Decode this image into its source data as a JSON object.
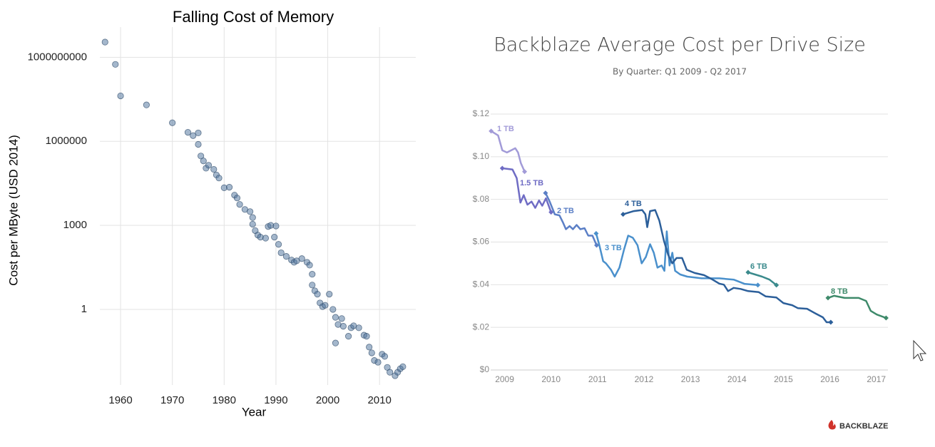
{
  "chart_data": [
    {
      "type": "scatter",
      "title": "Falling Cost of Memory",
      "x_label": "Year",
      "y_label": "Cost per MByte (USD 2014)",
      "x": [
        1957,
        1959,
        1960,
        1965,
        1970,
        1973,
        1974,
        1975,
        1975,
        1975.5,
        1976,
        1976.5,
        1977,
        1978,
        1978.5,
        1979,
        1980,
        1981,
        1982,
        1982.5,
        1983,
        1984,
        1985,
        1985.5,
        1985.5,
        1986,
        1986.5,
        1987,
        1988,
        1988.5,
        1989,
        1990,
        1989.7,
        1990.5,
        1991,
        1992,
        1993,
        1993.5,
        1994,
        1995,
        1996,
        1996.5,
        1997,
        1997,
        1997.5,
        1998,
        1998.5,
        1999,
        1999.5,
        2000.3,
        2001,
        2001.5,
        2001.5,
        2002,
        2002.7,
        2003,
        2004,
        2004.5,
        2005,
        2006,
        2007,
        2007.5,
        2008,
        2008.5,
        2009,
        2009.7,
        2010.5,
        2011,
        2011.5,
        2012,
        2013,
        2013.5,
        2014,
        2014.5
      ],
      "values": [
        3500000000,
        560000000,
        42000000,
        20000000,
        4600000,
        2100000,
        1600000,
        2000000,
        780000,
        300000,
        200000,
        110000,
        140000,
        100000,
        63000,
        49000,
        22000,
        23000,
        12000,
        9500,
        5600,
        3700,
        3100,
        1900,
        1100,
        650,
        450,
        380,
        350,
        910,
        1000,
        950,
        380,
        210,
        105,
        78,
        58,
        48,
        54,
        65,
        48,
        38,
        18,
        7.4,
        4.6,
        3.5,
        1.7,
        1.26,
        1.4,
        3.5,
        1,
        0.52,
        0.063,
        0.29,
        0.47,
        0.25,
        0.11,
        0.22,
        0.26,
        0.22,
        0.12,
        0.11,
        0.045,
        0.028,
        0.015,
        0.013,
        0.025,
        0.021,
        0.0085,
        0.0057,
        0.0043,
        0.0057,
        0.0076,
        0.009
      ],
      "color": "#4a6f9a",
      "xlim": [
        1956,
        2017
      ],
      "ylim": [
        0.002,
        12000000000
      ],
      "y_scale": "log",
      "xticks": [
        1960,
        1970,
        1980,
        1990,
        2000,
        2010
      ],
      "yticks": [
        1,
        1000,
        1000000,
        1000000000
      ],
      "grid": true
    },
    {
      "type": "line",
      "title": "Backblaze Average Cost per Drive Size",
      "subtitle": "By Quarter: Q1 2009 - Q2 2017",
      "logo": "BACKBLAZE",
      "xlim": [
        2008.7,
        2017.25
      ],
      "xticks": [
        2009,
        2010,
        2011,
        2012,
        2013,
        2014,
        2015,
        2016,
        2017
      ],
      "ylim": [
        0,
        0.12
      ],
      "yticks": [
        {
          "value": 0,
          "label": "$0"
        },
        {
          "value": 0.02,
          "label": "$.02"
        },
        {
          "value": 0.04,
          "label": "$.04"
        },
        {
          "value": 0.06,
          "label": "$.06"
        },
        {
          "value": 0.08,
          "label": "$.08"
        },
        {
          "value": 0.1,
          "label": "$.10"
        },
        {
          "value": 0.12,
          "label": "$.12"
        }
      ],
      "grid": true,
      "series": [
        {
          "name": "1 TB",
          "color": "#a29bd8",
          "x": [
            2008.71,
            2008.86,
            2008.95,
            2009.05,
            2009.14,
            2009.23,
            2009.29,
            2009.35,
            2009.43
          ],
          "values": [
            0.112,
            0.11,
            0.103,
            0.102,
            0.103,
            0.104,
            0.102,
            0.097,
            0.093
          ]
        },
        {
          "name": "1.5 TB",
          "color": "#6f6cc4",
          "x": [
            2008.95,
            2009.17,
            2009.26,
            2009.34,
            2009.41,
            2009.49,
            2009.58,
            2009.66,
            2009.74,
            2009.81,
            2009.89,
            2010
          ],
          "values": [
            0.0946,
            0.094,
            0.09,
            0.0785,
            0.082,
            0.0775,
            0.079,
            0.076,
            0.0795,
            0.077,
            0.0805,
            0.074
          ]
        },
        {
          "name": "2 TB",
          "color": "#5b7fc6",
          "x": [
            2009.88,
            2009.97,
            2010.08,
            2010.18,
            2010.26,
            2010.32,
            2010.4,
            2010.47,
            2010.55,
            2010.63,
            2010.72,
            2010.8,
            2010.89,
            2010.98
          ],
          "values": [
            0.083,
            0.079,
            0.073,
            0.0725,
            0.069,
            0.066,
            0.0675,
            0.066,
            0.068,
            0.066,
            0.0665,
            0.063,
            0.063,
            0.0585
          ]
        },
        {
          "name": "3 TB",
          "color": "#4a90cc",
          "x": [
            2010.97,
            2011.04,
            2011.12,
            2011.18,
            2011.29,
            2011.37,
            2011.47,
            2011.57,
            2011.66,
            2011.76,
            2011.86,
            2011.95,
            2012.04,
            2012.13,
            2012.21,
            2012.29,
            2012.38,
            2012.44,
            2012.49,
            2012.55,
            2012.61,
            2012.67,
            2012.78,
            2012.93,
            2013.24,
            2013.62,
            2013.93,
            2014.16,
            2014.45
          ],
          "values": [
            0.064,
            0.0585,
            0.051,
            0.05,
            0.047,
            0.0438,
            0.048,
            0.0565,
            0.063,
            0.062,
            0.0585,
            0.05,
            0.053,
            0.059,
            0.055,
            0.048,
            0.049,
            0.0465,
            0.065,
            0.049,
            0.055,
            0.0465,
            0.0448,
            0.0438,
            0.043,
            0.043,
            0.0424,
            0.0404,
            0.0398
          ]
        },
        {
          "name": "4 TB",
          "color": "#2c5f9a",
          "x": [
            2011.55,
            2011.78,
            2011.96,
            2012.03,
            2012.07,
            2012.13,
            2012.24,
            2012.33,
            2012.43,
            2012.52,
            2012.61,
            2012.7,
            2012.82,
            2012.92,
            2013.09,
            2013.29,
            2013.47,
            2013.62,
            2013.72,
            2013.81,
            2013.93,
            2014.08,
            2014.24,
            2014.47,
            2014.62,
            2014.85,
            2015,
            2015.19,
            2015.31,
            2015.51,
            2015.7,
            2015.85,
            2015.93,
            2016.02
          ],
          "values": [
            0.073,
            0.0745,
            0.075,
            0.073,
            0.067,
            0.0745,
            0.075,
            0.07,
            0.0605,
            0.054,
            0.05,
            0.0525,
            0.0525,
            0.047,
            0.0455,
            0.0445,
            0.0425,
            0.0405,
            0.04,
            0.037,
            0.0385,
            0.038,
            0.037,
            0.0365,
            0.0345,
            0.034,
            0.0314,
            0.0304,
            0.029,
            0.0287,
            0.0264,
            0.0247,
            0.0224,
            0.0224
          ]
        },
        {
          "name": "6 TB",
          "color": "#3a8a8c",
          "x": [
            2014.24,
            2014.39,
            2014.54,
            2014.7,
            2014.85
          ],
          "values": [
            0.0458,
            0.0448,
            0.0438,
            0.0424,
            0.0398
          ]
        },
        {
          "name": "8 TB",
          "color": "#3e8a6a",
          "x": [
            2015.96,
            2016.09,
            2016.32,
            2016.62,
            2016.78,
            2016.88,
            2017.01,
            2017.21
          ],
          "values": [
            0.0338,
            0.0348,
            0.0338,
            0.0338,
            0.0324,
            0.0277,
            0.026,
            0.0244
          ]
        }
      ]
    }
  ]
}
